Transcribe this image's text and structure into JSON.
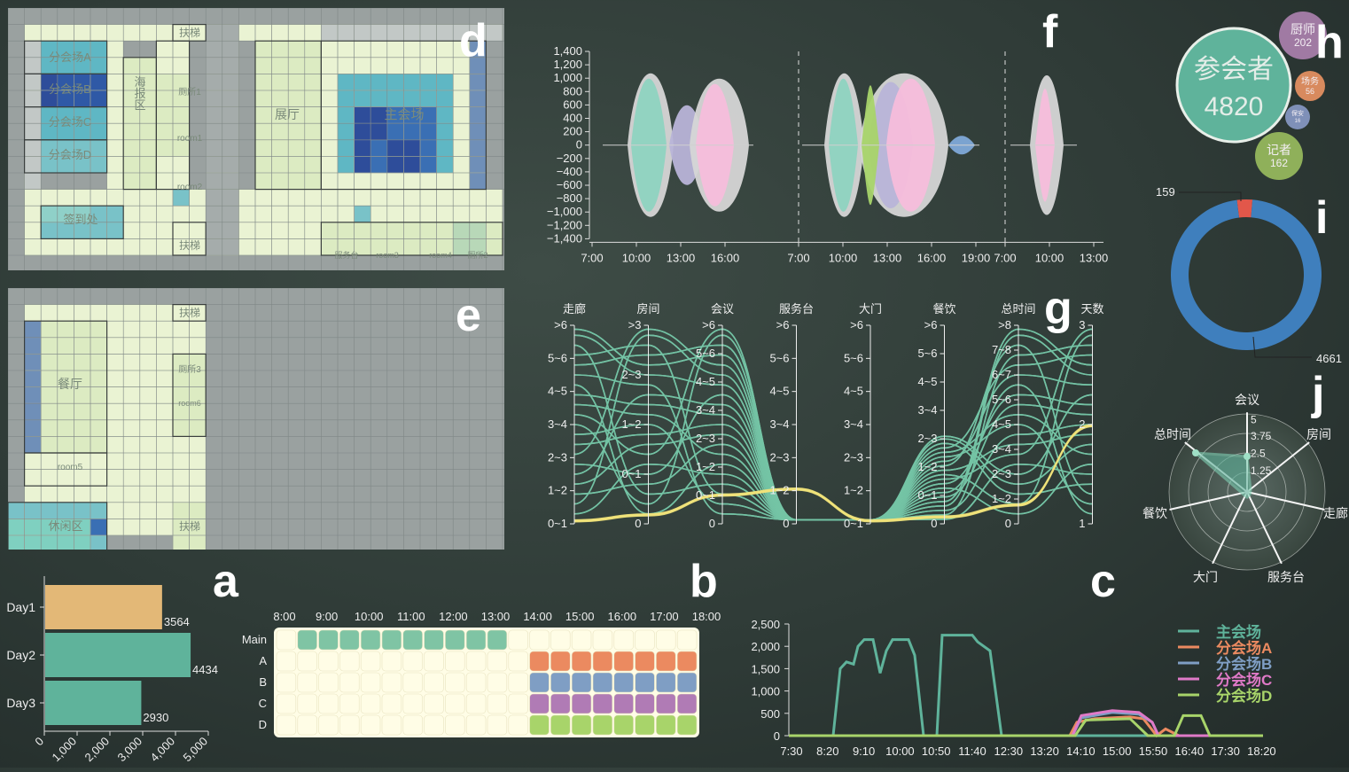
{
  "panel_letters": {
    "a": "a",
    "b": "b",
    "c": "c",
    "d": "d",
    "e": "e",
    "f": "f",
    "g": "g",
    "h": "h",
    "i": "i",
    "j": "j"
  },
  "floor1": {
    "rooms": [
      {
        "label": "分会场A"
      },
      {
        "label": "分会场B"
      },
      {
        "label": "分会场C"
      },
      {
        "label": "分会场D"
      },
      {
        "label": "海报区"
      },
      {
        "label": "厕所1"
      },
      {
        "label": "room1"
      },
      {
        "label": "room2"
      },
      {
        "label": "展厅"
      },
      {
        "label": "主会场"
      },
      {
        "label": "签到处"
      },
      {
        "label": "扶梯"
      },
      {
        "label": "扶梯"
      },
      {
        "label": "服务台"
      },
      {
        "label": "room3"
      },
      {
        "label": "room4"
      },
      {
        "label": "厕所2"
      }
    ],
    "colors": {
      "light": "#eaf3d3",
      "gray": "#9aa1a0",
      "teal": "#5fb7c4",
      "blue": "#3a6fb4",
      "dark": "#2e4d9a"
    }
  },
  "floor2": {
    "rooms": [
      {
        "label": "扶梯"
      },
      {
        "label": "餐厅"
      },
      {
        "label": "厕所3"
      },
      {
        "label": "room6"
      },
      {
        "label": "room5"
      },
      {
        "label": "休闲区"
      },
      {
        "label": "扶梯"
      }
    ]
  },
  "panel_a": {
    "chart_data": {
      "type": "bar",
      "categories": [
        "Day1",
        "Day2",
        "Day3"
      ],
      "values": [
        3564,
        4434,
        2930
      ],
      "value_labels": [
        "3564",
        "4434",
        "2930"
      ],
      "xlim": [
        0,
        5000
      ],
      "xticks": [
        "0",
        "1,000",
        "2,000",
        "3,000",
        "4,000",
        "5,000"
      ],
      "colors": [
        "#e3b877",
        "#5fb39b",
        "#5fb39b"
      ]
    }
  },
  "panel_b": {
    "times": [
      "8:00",
      "9:00",
      "10:00",
      "11:00",
      "12:00",
      "13:00",
      "14:00",
      "15:00",
      "16:00",
      "17:00",
      "18:00"
    ],
    "rows": [
      {
        "label": "Main",
        "color": "#7fc4a4",
        "start": 1,
        "end": 10
      },
      {
        "label": "A",
        "color": "#eb8a60",
        "start": 12,
        "end": 19
      },
      {
        "label": "B",
        "color": "#7f9ec4",
        "start": 12,
        "end": 19
      },
      {
        "label": "C",
        "color": "#b07bb5",
        "start": 12,
        "end": 19
      },
      {
        "label": "D",
        "color": "#a8d46a",
        "start": 12,
        "end": 19
      }
    ],
    "slots": 20
  },
  "panel_c": {
    "chart_data": {
      "type": "line",
      "x": [
        "7:30",
        "8:20",
        "9:10",
        "10:00",
        "10:50",
        "11:40",
        "12:30",
        "13:20",
        "14:10",
        "15:00",
        "15:50",
        "16:40",
        "17:30",
        "18:20"
      ],
      "ylim": [
        0,
        2500
      ],
      "yticks": [
        "0",
        "500",
        "1,000",
        "1,500",
        "2,000",
        "2,500"
      ],
      "series": [
        {
          "name": "主会场",
          "color": "#5fb39b"
        },
        {
          "name": "分会场A",
          "color": "#eb8a60"
        },
        {
          "name": "分会场B",
          "color": "#7f9ec4"
        },
        {
          "name": "分会场C",
          "color": "#e07ac8"
        },
        {
          "name": "分会场D",
          "color": "#a8d46a"
        }
      ]
    }
  },
  "panel_f": {
    "yticks": [
      "1,400",
      "1,200",
      "1,000",
      "800",
      "600",
      "400",
      "200",
      "0",
      "−200",
      "−400",
      "−600",
      "−800",
      "−1,000",
      "−1,200",
      "−1,400"
    ],
    "day_ticks": [
      [
        "7:00",
        "10:00",
        "13:00",
        "16:00"
      ],
      [
        "7:00",
        "10:00",
        "13:00",
        "16:00",
        "19:00"
      ],
      [
        "7:00",
        "10:00",
        "13:00"
      ]
    ]
  },
  "panel_g": {
    "axes": [
      {
        "name": "走廊",
        "ticks": [
          ">6",
          "5~6",
          "4~5",
          "3~4",
          "2~3",
          "1~2",
          "0~1"
        ]
      },
      {
        "name": "房间",
        "ticks": [
          ">3",
          "2~3",
          "1~2",
          "0~1",
          "0"
        ]
      },
      {
        "name": "会议",
        "ticks": [
          ">6",
          "5~6",
          "4~5",
          "3~4",
          "2~3",
          "1~2",
          "0~1",
          "0"
        ]
      },
      {
        "name": "服务台",
        "ticks": [
          ">6",
          "5~6",
          "4~5",
          "3~4",
          "2~3",
          "1~2",
          "0"
        ]
      },
      {
        "name": "大门",
        "ticks": [
          ">6",
          "5~6",
          "4~5",
          "3~4",
          "2~3",
          "1~2",
          "0~1"
        ]
      },
      {
        "name": "餐饮",
        "ticks": [
          ">6",
          "5~6",
          "4~5",
          "3~4",
          "2~3",
          "1~2",
          "0~1",
          "0"
        ]
      },
      {
        "name": "总时间",
        "ticks": [
          ">8",
          "7~8",
          "6~7",
          "5~6",
          "4~5",
          "3~4",
          "2~3",
          "1~2",
          "0"
        ]
      },
      {
        "name": "天数",
        "ticks": [
          "3",
          "2",
          "1"
        ]
      }
    ]
  },
  "panel_h": {
    "main": {
      "label": "参会者",
      "value": "4820"
    },
    "bubbles": [
      {
        "label": "厨师",
        "value": "202",
        "color": "#a07aa3"
      },
      {
        "label": "场务",
        "value": "56",
        "color": "#d88a5e"
      },
      {
        "label": "保安",
        "value": "16",
        "color": "#7f90b8"
      },
      {
        "label": "记者",
        "value": "162",
        "color": "#8fb05a"
      }
    ]
  },
  "panel_i": {
    "chart_data": {
      "type": "pie",
      "values": [
        159,
        4661
      ],
      "labels": [
        "159",
        "4661"
      ],
      "colors": [
        "#e2574a",
        "#3f7fbd"
      ]
    }
  },
  "panel_j": {
    "axes": [
      "会议",
      "房间",
      "走廊",
      "服务台",
      "大门",
      "餐饮",
      "总时间"
    ],
    "ring_ticks": [
      "5",
      "3.75",
      "2.5",
      "1.25"
    ]
  }
}
